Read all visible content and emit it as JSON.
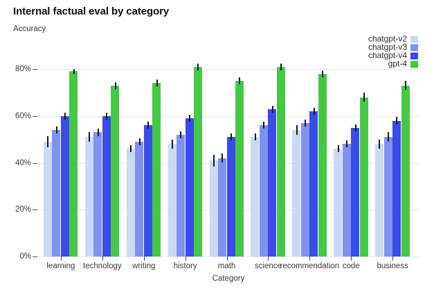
{
  "chart_data": {
    "type": "bar",
    "title": "Internal factual eval by category",
    "subtitle": "Accuracy",
    "ylabel": "Accuracy",
    "xlabel": "Category",
    "categories": [
      "learning",
      "technology",
      "writing",
      "history",
      "math",
      "science",
      "recommendation",
      "code",
      "business"
    ],
    "series": [
      {
        "name": "chatgpt-v2",
        "color": "#cbd9f5",
        "values": [
          49,
          51,
          46,
          48,
          41,
          51,
          54,
          46,
          48
        ],
        "errors": [
          2.5,
          2,
          1.5,
          2,
          2.5,
          1.5,
          2,
          1.5,
          2
        ]
      },
      {
        "name": "chatgpt-v3",
        "color": "#7e92ee",
        "values": [
          54,
          53,
          49,
          52,
          42,
          56,
          57,
          48,
          51
        ],
        "errors": [
          1.5,
          1.5,
          1.5,
          1.5,
          2,
          1.5,
          1.5,
          1.5,
          2
        ]
      },
      {
        "name": "chatgpt-v4",
        "color": "#3a4be8",
        "values": [
          60,
          60,
          56,
          59,
          51,
          63,
          62,
          55,
          58
        ],
        "errors": [
          1.5,
          1.5,
          1.5,
          1.5,
          1.5,
          1.5,
          1.5,
          1.5,
          1.5
        ]
      },
      {
        "name": "gpt-4",
        "color": "#46c846",
        "values": [
          79,
          73,
          74,
          81,
          75,
          81,
          78,
          68,
          73
        ],
        "errors": [
          1,
          1.5,
          1.5,
          1.5,
          1.5,
          1.5,
          1.5,
          2,
          2
        ]
      }
    ],
    "y_ticks": [
      {
        "value": 0,
        "label": "0%"
      },
      {
        "value": 20,
        "label": "20%"
      },
      {
        "value": 40,
        "label": "40%"
      },
      {
        "value": 60,
        "label": "60%"
      },
      {
        "value": 80,
        "label": "80%"
      }
    ],
    "ylim": [
      0,
      85
    ],
    "grid": true,
    "legend_position": "top-right",
    "error_bar_color": "#12172b"
  }
}
